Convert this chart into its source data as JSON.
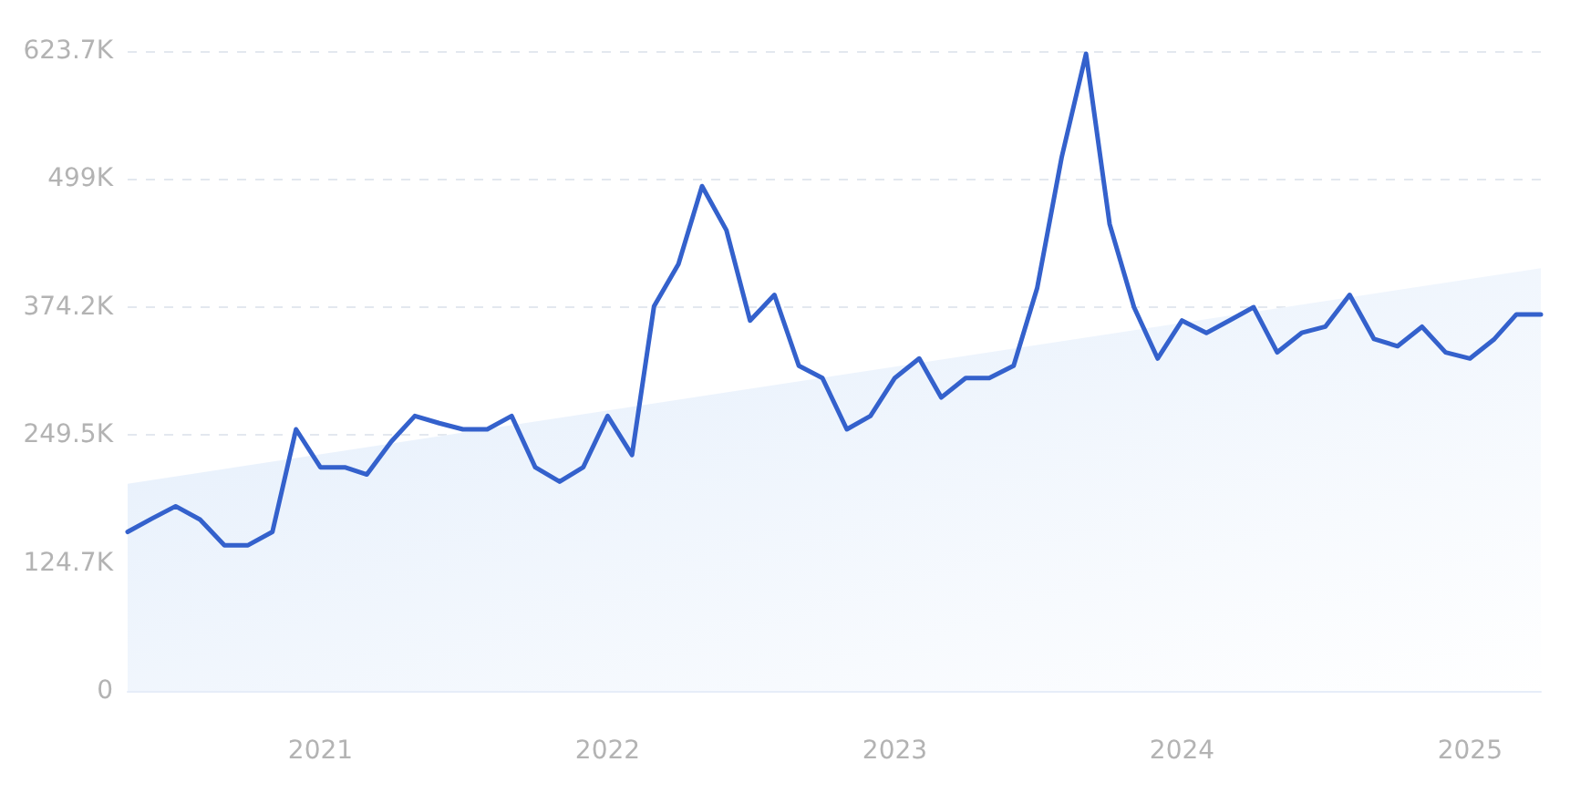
{
  "chart_data": {
    "type": "line",
    "x": [
      "2020-05",
      "2020-06",
      "2020-07",
      "2020-08",
      "2020-09",
      "2020-10",
      "2020-11",
      "2020-12",
      "2021-01",
      "2021-02",
      "2021-03",
      "2021-04",
      "2021-05",
      "2021-06",
      "2021-07",
      "2021-08",
      "2021-09",
      "2021-10",
      "2021-11",
      "2021-12",
      "2022-01",
      "2022-02",
      "2022-03",
      "2022-04",
      "2022-05",
      "2022-06",
      "2022-07",
      "2022-08",
      "2022-09",
      "2022-10",
      "2022-11",
      "2022-12",
      "2023-01",
      "2023-02",
      "2023-03",
      "2023-04",
      "2023-05",
      "2023-06",
      "2023-07",
      "2023-08",
      "2023-09",
      "2023-10",
      "2023-11",
      "2023-12",
      "2024-01",
      "2024-02",
      "2024-03",
      "2024-04",
      "2024-05",
      "2024-06",
      "2024-07",
      "2024-08",
      "2024-09",
      "2024-10",
      "2024-11",
      "2024-12",
      "2025-01",
      "2025-02",
      "2025-03",
      "2025-04"
    ],
    "series": [
      {
        "color": "#3461cc",
        "values": [
          155000,
          168000,
          180000,
          167000,
          142000,
          142000,
          155000,
          255000,
          218000,
          218000,
          211000,
          243000,
          268000,
          261000,
          255000,
          255000,
          268000,
          218000,
          204000,
          218000,
          268000,
          230000,
          375000,
          416000,
          492000,
          449000,
          361000,
          386000,
          317000,
          305000,
          255000,
          268000,
          305000,
          324000,
          286000,
          305000,
          305000,
          317000,
          393000,
          520000,
          621000,
          455000,
          374000,
          324000,
          361000,
          349000,
          361000,
          374000,
          330000,
          349000,
          355000,
          386000,
          343000,
          336000,
          355000,
          330000,
          324000,
          343000,
          367000,
          367000
        ]
      },
      {
        "type": "area",
        "color": "#e2edfb",
        "x": [
          "2020-05",
          "2025-04"
        ],
        "values": [
          202000,
          412000
        ]
      }
    ],
    "xlim": [
      "2020-05",
      "2025-04"
    ],
    "xticks": [
      "2021",
      "2022",
      "2023",
      "2024",
      "2025"
    ],
    "ylim": [
      0,
      623700
    ],
    "yticks": [
      0,
      {
        "value": 124700,
        "label": "124.7K"
      },
      {
        "value": 249500,
        "label": "249.5K"
      },
      {
        "value": 374200,
        "label": "374.2K"
      },
      {
        "value": 499000,
        "label": "499K"
      },
      {
        "value": 623700,
        "label": "623.7K"
      }
    ],
    "grid": "y"
  }
}
